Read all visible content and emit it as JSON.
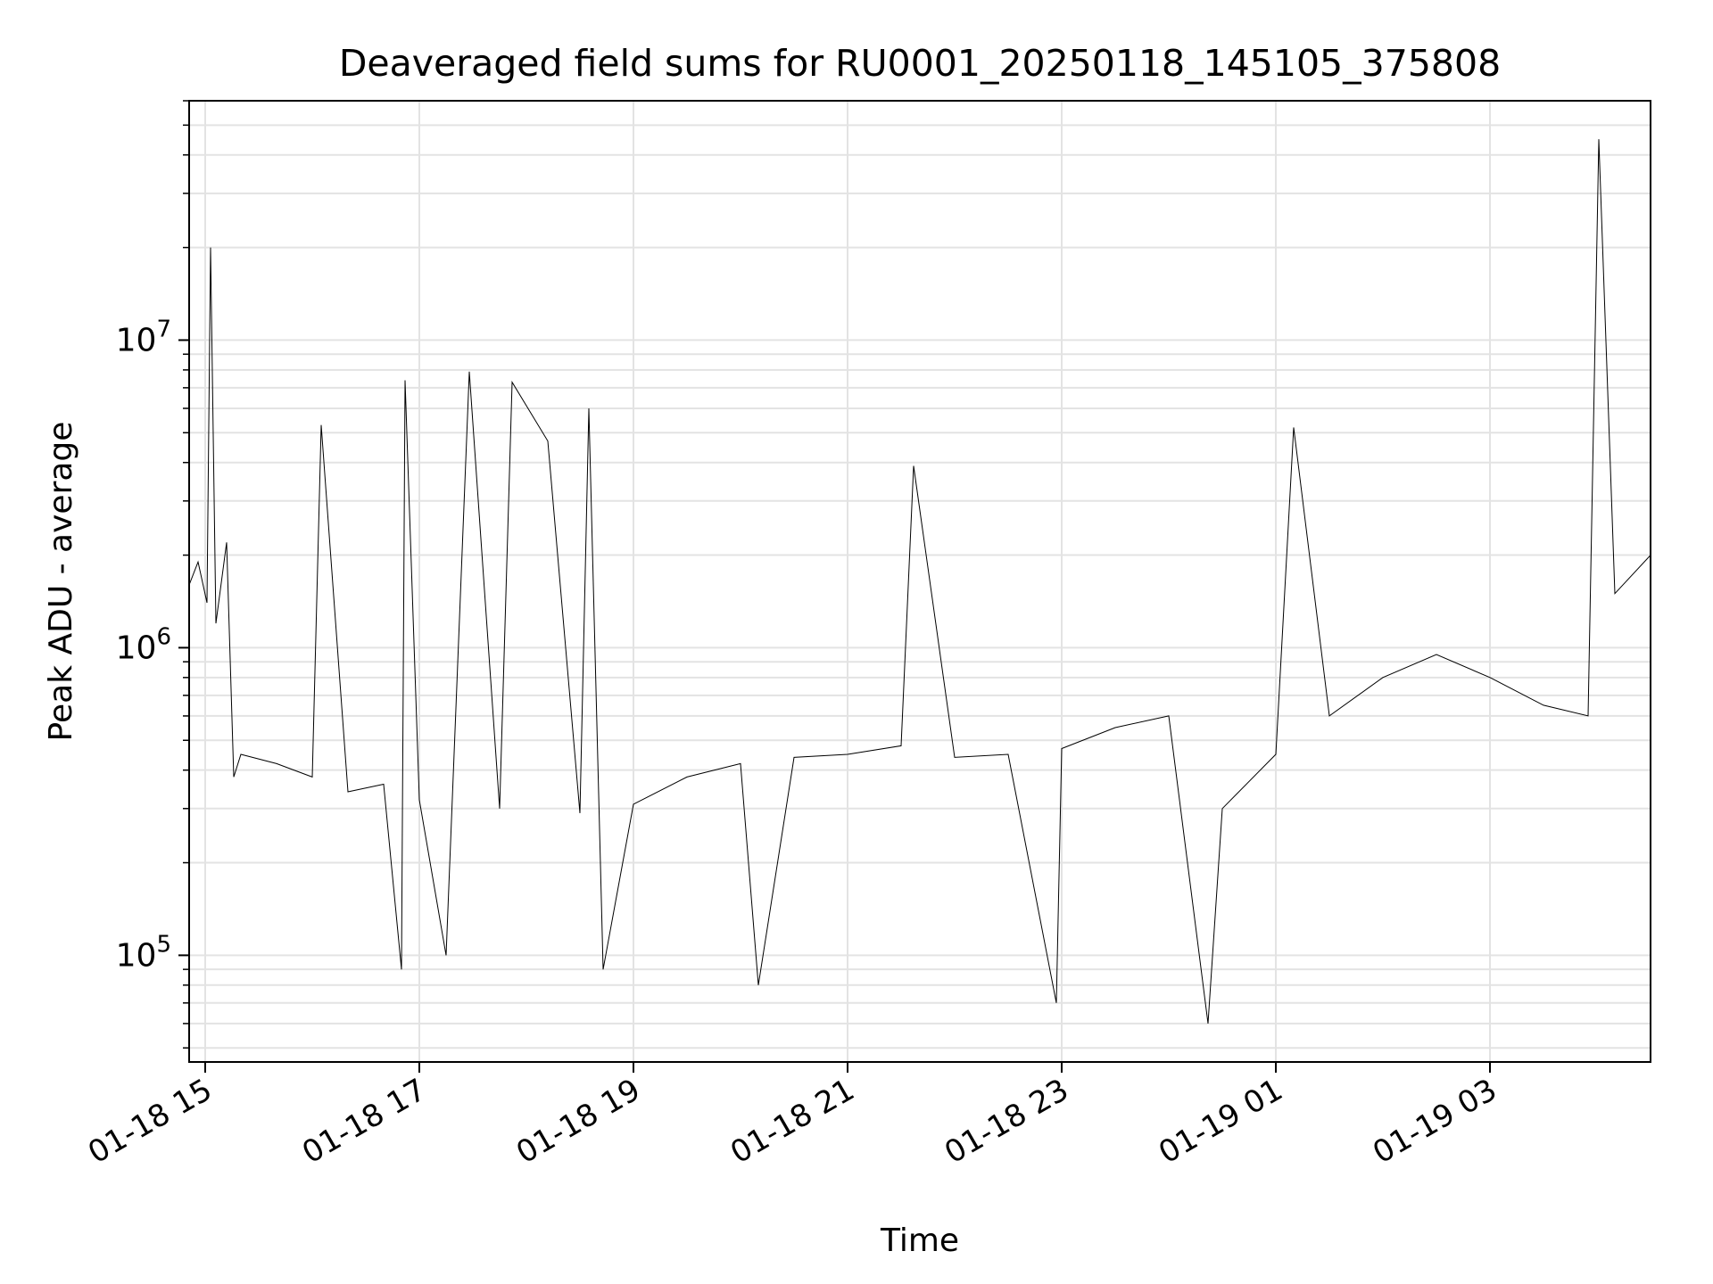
{
  "chart_data": {
    "type": "line",
    "title": "Deaveraged field sums for RU0001_20250118_145105_375808",
    "xlabel": "Time",
    "ylabel": "Peak ADU - average",
    "yscale": "log",
    "xlim": [
      "2025-01-18 14:51",
      "2025-01-19 04:30"
    ],
    "ylim": [
      45000,
      60000000
    ],
    "grid": true,
    "x_ticks": [
      {
        "value": "2025-01-18 15:00",
        "label": "01-18 15"
      },
      {
        "value": "2025-01-18 17:00",
        "label": "01-18 17"
      },
      {
        "value": "2025-01-18 19:00",
        "label": "01-18 19"
      },
      {
        "value": "2025-01-18 21:00",
        "label": "01-18 21"
      },
      {
        "value": "2025-01-18 23:00",
        "label": "01-18 23"
      },
      {
        "value": "2025-01-19 01:00",
        "label": "01-19 01"
      },
      {
        "value": "2025-01-19 03:00",
        "label": "01-19 03"
      }
    ],
    "y_ticks": [
      {
        "value": 100000,
        "base": "10",
        "exp": "5"
      },
      {
        "value": 1000000,
        "base": "10",
        "exp": "6"
      },
      {
        "value": 10000000,
        "base": "10",
        "exp": "7"
      }
    ],
    "series": [
      {
        "color": "#000000",
        "points": [
          [
            "2025-01-18 14:51",
            1600000
          ],
          [
            "2025-01-18 14:56",
            1900000
          ],
          [
            "2025-01-18 15:01",
            1400000
          ],
          [
            "2025-01-18 15:03",
            20000000
          ],
          [
            "2025-01-18 15:06",
            1200000
          ],
          [
            "2025-01-18 15:12",
            2200000
          ],
          [
            "2025-01-18 15:16",
            380000
          ],
          [
            "2025-01-18 15:20",
            450000
          ],
          [
            "2025-01-18 15:40",
            420000
          ],
          [
            "2025-01-18 16:00",
            380000
          ],
          [
            "2025-01-18 16:05",
            5300000
          ],
          [
            "2025-01-18 16:20",
            340000
          ],
          [
            "2025-01-18 16:40",
            360000
          ],
          [
            "2025-01-18 16:50",
            90000
          ],
          [
            "2025-01-18 16:52",
            7400000
          ],
          [
            "2025-01-18 17:00",
            320000
          ],
          [
            "2025-01-18 17:15",
            100000
          ],
          [
            "2025-01-18 17:28",
            7900000
          ],
          [
            "2025-01-18 17:45",
            300000
          ],
          [
            "2025-01-18 17:52",
            7300000
          ],
          [
            "2025-01-18 18:12",
            4700000
          ],
          [
            "2025-01-18 18:30",
            290000
          ],
          [
            "2025-01-18 18:35",
            6000000
          ],
          [
            "2025-01-18 18:43",
            90000
          ],
          [
            "2025-01-18 19:00",
            310000
          ],
          [
            "2025-01-18 19:30",
            380000
          ],
          [
            "2025-01-18 20:00",
            420000
          ],
          [
            "2025-01-18 20:10",
            80000
          ],
          [
            "2025-01-18 20:30",
            440000
          ],
          [
            "2025-01-18 21:00",
            450000
          ],
          [
            "2025-01-18 21:30",
            480000
          ],
          [
            "2025-01-18 21:37",
            3900000
          ],
          [
            "2025-01-18 22:00",
            440000
          ],
          [
            "2025-01-18 22:30",
            450000
          ],
          [
            "2025-01-18 23:00",
            470000
          ],
          [
            "2025-01-18 22:57",
            70000
          ],
          [
            "2025-01-18 23:30",
            550000
          ],
          [
            "2025-01-19 00:00",
            600000
          ],
          [
            "2025-01-19 00:22",
            60000
          ],
          [
            "2025-01-19 00:30",
            300000
          ],
          [
            "2025-01-19 01:00",
            450000
          ],
          [
            "2025-01-19 01:10",
            5200000
          ],
          [
            "2025-01-19 01:30",
            600000
          ],
          [
            "2025-01-19 02:00",
            800000
          ],
          [
            "2025-01-19 02:30",
            950000
          ],
          [
            "2025-01-19 03:00",
            800000
          ],
          [
            "2025-01-19 03:30",
            650000
          ],
          [
            "2025-01-19 03:55",
            600000
          ],
          [
            "2025-01-19 04:01",
            45000000
          ],
          [
            "2025-01-19 04:10",
            1500000
          ],
          [
            "2025-01-19 04:30",
            2000000
          ]
        ]
      }
    ]
  }
}
